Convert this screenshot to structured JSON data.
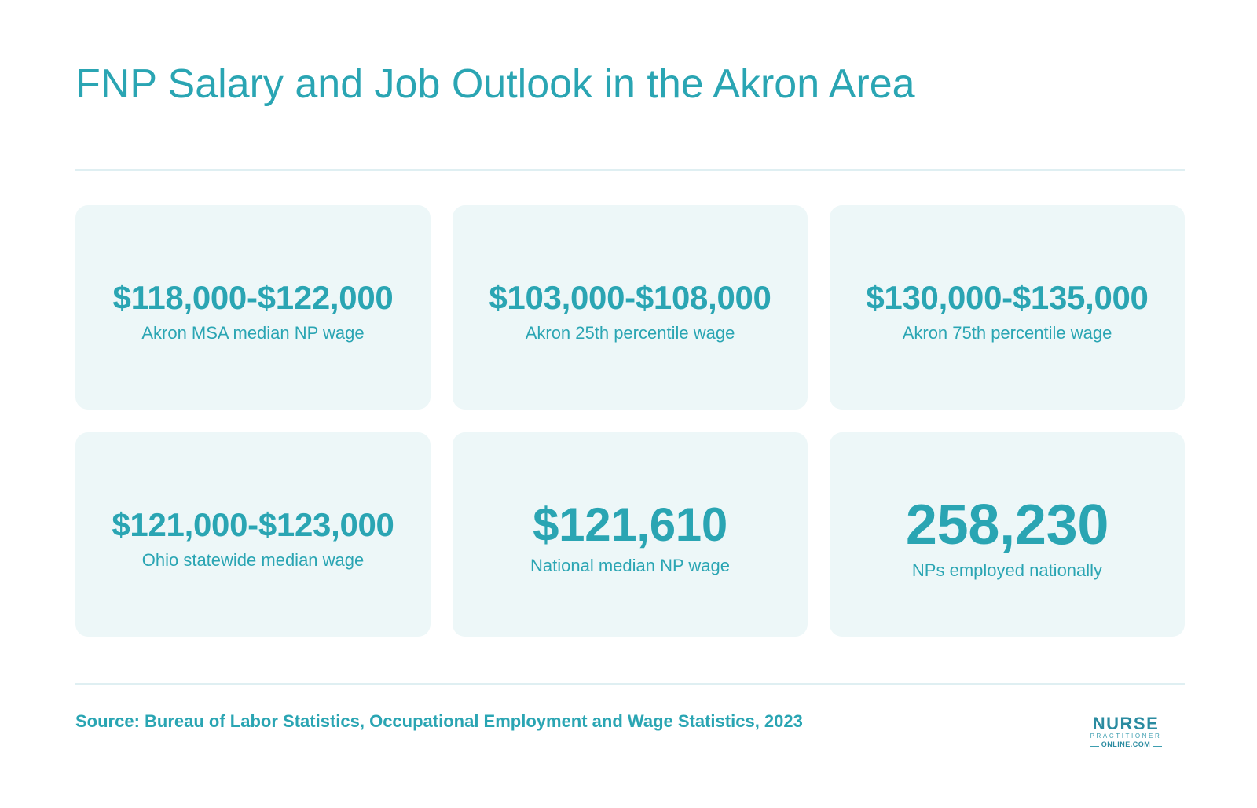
{
  "title": "FNP Salary and Job Outlook in the Akron Area",
  "cards": [
    {
      "value": "$118,000-$122,000",
      "label": "Akron MSA median NP wage"
    },
    {
      "value": "$103,000-$108,000",
      "label": "Akron 25th percentile wage"
    },
    {
      "value": "$130,000-$135,000",
      "label": "Akron 75th percentile wage"
    },
    {
      "value": "$121,000-$123,000",
      "label": "Ohio statewide median wage"
    },
    {
      "value": "$121,610",
      "label": "National median NP wage"
    },
    {
      "value": "258,230",
      "label": "NPs employed nationally"
    }
  ],
  "source": "Source: Bureau of Labor Statistics, Occupational Employment and Wage Statistics, 2023",
  "logo": {
    "line1": "NURSE",
    "line2": "PRACTITIONER",
    "line3": "ONLINE.COM"
  },
  "colors": {
    "accent": "#2aa5b3",
    "card_background": "#edf7f8",
    "divider": "#dfeff2"
  }
}
